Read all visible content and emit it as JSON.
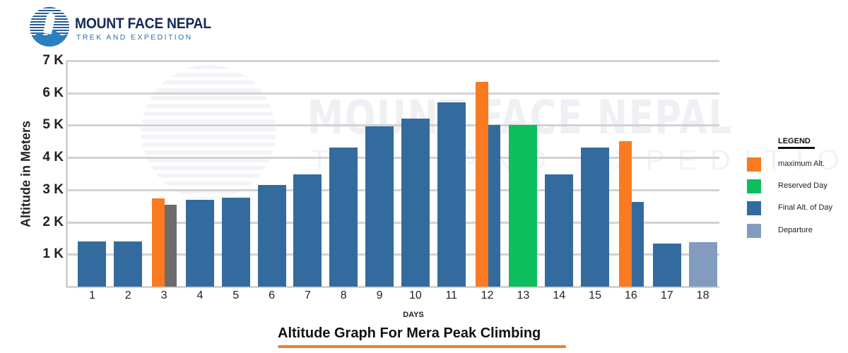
{
  "brand": {
    "name": "MOUNT FACE NEPAL",
    "tagline": "TREK AND EXPEDITION",
    "watermark_name": "MOUNT FACE NEPAL",
    "watermark_tagline": "TREK AND EXPEDITION"
  },
  "colors": {
    "max_alt": "#f97a21",
    "reserved": "#0dbd5e",
    "final_alt": "#336b9f",
    "departure": "#819cbf",
    "day3_secondary": "#6b6b6b",
    "underline": "#e8813a",
    "grid": "#d2d2d2"
  },
  "legend": {
    "title": "LEGEND",
    "items": [
      {
        "label": "maximum Alt.",
        "color": "#f97a21"
      },
      {
        "label": "Reserved Day",
        "color": "#0dbd5e"
      },
      {
        "label": "Final Alt. of Day",
        "color": "#336b9f"
      },
      {
        "label": "Departure",
        "color": "#819cbf"
      }
    ]
  },
  "chart_data": {
    "type": "bar",
    "title": "Altitude Graph  For Mera Peak Climbing",
    "xlabel": "DAYS",
    "ylabel": "Altitude in Meters",
    "ylim": [
      0,
      7000
    ],
    "yticks": [
      "1 K",
      "2 K",
      "3 K",
      "4 K",
      "5 K",
      "6 K",
      "7 K"
    ],
    "grid": true,
    "legend_position": "right",
    "categories": [
      "1",
      "2",
      "3",
      "4",
      "5",
      "6",
      "7",
      "8",
      "9",
      "10",
      "11",
      "12",
      "13",
      "14",
      "15",
      "16",
      "17",
      "18"
    ],
    "series": [
      {
        "name": "maximum Alt.",
        "values": [
          null,
          null,
          2730,
          null,
          null,
          null,
          null,
          null,
          null,
          null,
          null,
          6350,
          null,
          null,
          null,
          4500,
          null,
          null
        ]
      },
      {
        "name": "Final Alt. of Day",
        "values": [
          1400,
          1400,
          2540,
          2700,
          2750,
          3160,
          3480,
          4300,
          4970,
          5200,
          5700,
          5000,
          null,
          3480,
          4300,
          2620,
          1330,
          null
        ]
      },
      {
        "name": "Reserved Day",
        "values": [
          null,
          null,
          null,
          null,
          null,
          null,
          null,
          null,
          null,
          null,
          null,
          null,
          5000,
          null,
          null,
          null,
          null,
          null
        ]
      },
      {
        "name": "Departure",
        "values": [
          null,
          null,
          null,
          null,
          null,
          null,
          null,
          null,
          null,
          null,
          null,
          null,
          null,
          null,
          null,
          null,
          null,
          1380
        ]
      }
    ],
    "notes": "Day 3 final altitude bar is drawn in gray"
  }
}
